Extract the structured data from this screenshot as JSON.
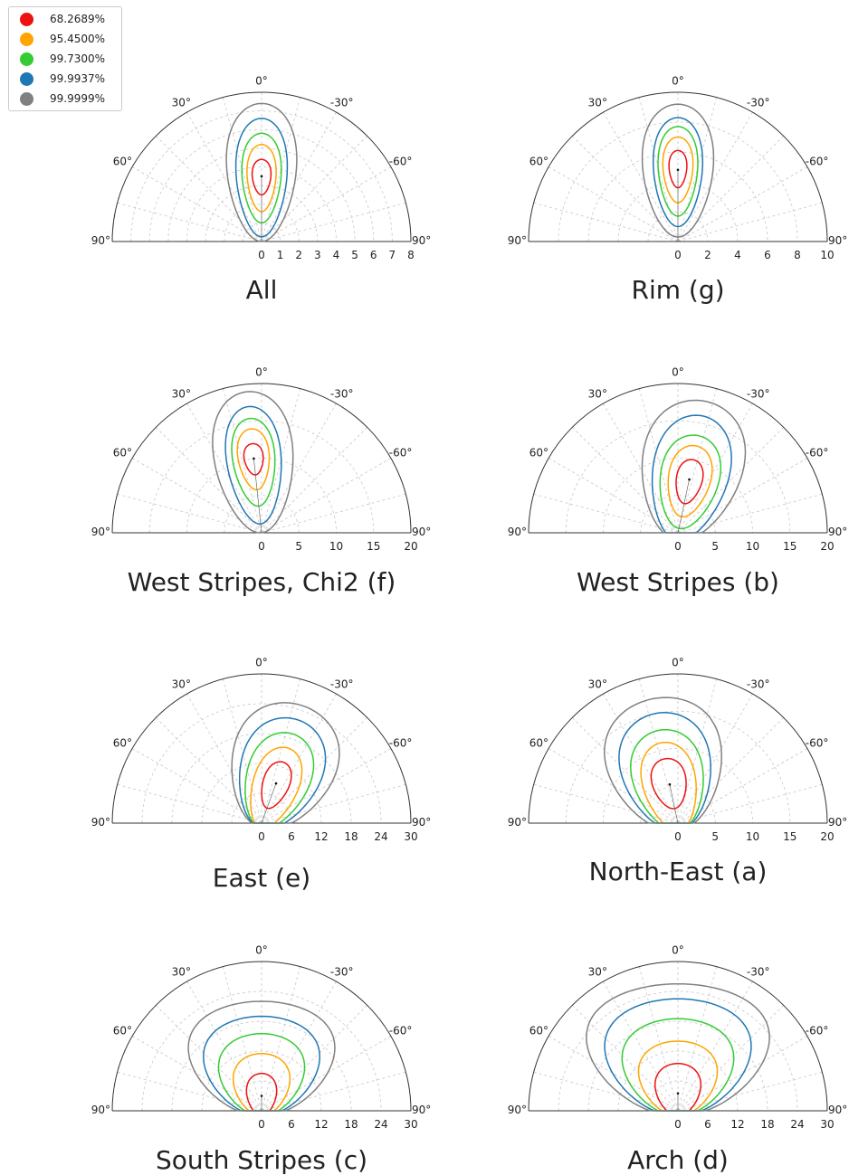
{
  "legend": {
    "items": [
      {
        "label": "68.2689%",
        "color": "#ee1111"
      },
      {
        "label": "95.4500%",
        "color": "#ffa500"
      },
      {
        "label": "99.7300%",
        "color": "#33cc33"
      },
      {
        "label": "99.9937%",
        "color": "#1f77b4"
      },
      {
        "label": "99.9999%",
        "color": "#808080"
      }
    ]
  },
  "chart_data": [
    {
      "type": "polar-contour",
      "title": "All",
      "theta_ticks": [
        "90°",
        "60°",
        "30°",
        "0°",
        "-30°",
        "-60°",
        "90°"
      ],
      "r_ticks": [
        "0",
        "1",
        "2",
        "3",
        "4",
        "5",
        "6",
        "7",
        "8"
      ],
      "rmax": 8,
      "center": {
        "theta_deg": 0,
        "r": 3.5
      },
      "contours": [
        {
          "level": "68.2689%",
          "color": "#ee1111",
          "r_top": 4.4,
          "r_bottom": 2.5,
          "half_width": 0.55
        },
        {
          "level": "95.4500%",
          "color": "#ffa500",
          "r_top": 5.2,
          "r_bottom": 1.6,
          "half_width": 0.85
        },
        {
          "level": "99.7300%",
          "color": "#33cc33",
          "r_top": 5.8,
          "r_bottom": 1.0,
          "half_width": 1.15
        },
        {
          "level": "99.9937%",
          "color": "#1f77b4",
          "r_top": 6.6,
          "r_bottom": 0.25,
          "half_width": 1.5
        },
        {
          "level": "99.9999%",
          "color": "#808080",
          "r_top": 7.4,
          "r_bottom": 0.0,
          "half_width": 2.05
        }
      ]
    },
    {
      "type": "polar-contour",
      "title": "Rim (g)",
      "theta_ticks": [
        "90°",
        "60°",
        "30°",
        "0°",
        "-30°",
        "-60°",
        "90°"
      ],
      "r_ticks": [
        "0",
        "2",
        "4",
        "6",
        "8",
        "10"
      ],
      "rmax": 10,
      "center": {
        "theta_deg": 0,
        "r": 4.8
      },
      "contours": [
        {
          "level": "68.2689%",
          "color": "#ee1111",
          "r_top": 6.1,
          "r_bottom": 3.6,
          "half_width": 0.65
        },
        {
          "level": "95.4500%",
          "color": "#ffa500",
          "r_top": 7.0,
          "r_bottom": 2.6,
          "half_width": 1.1
        },
        {
          "level": "99.7300%",
          "color": "#33cc33",
          "r_top": 7.7,
          "r_bottom": 1.7,
          "half_width": 1.45
        },
        {
          "level": "99.9937%",
          "color": "#1f77b4",
          "r_top": 8.3,
          "r_bottom": 1.0,
          "half_width": 1.8
        },
        {
          "level": "99.9999%",
          "color": "#808080",
          "r_top": 9.2,
          "r_bottom": 0.3,
          "half_width": 2.6
        }
      ]
    },
    {
      "type": "polar-contour",
      "title": "West Stripes, Chi2 (f)",
      "theta_ticks": [
        "90°",
        "60°",
        "30°",
        "0°",
        "-30°",
        "-60°",
        "90°"
      ],
      "r_ticks": [
        "0",
        "5",
        "10",
        "15",
        "20"
      ],
      "rmax": 20,
      "center": {
        "theta_deg": 6,
        "r": 10
      },
      "contours": [
        {
          "level": "68.2689%",
          "color": "#ee1111",
          "r_top": 12.0,
          "r_bottom": 7.8,
          "half_width": 1.4
        },
        {
          "level": "95.4500%",
          "color": "#ffa500",
          "r_top": 14.0,
          "r_bottom": 5.8,
          "half_width": 2.3
        },
        {
          "level": "99.7300%",
          "color": "#33cc33",
          "r_top": 15.4,
          "r_bottom": 3.6,
          "half_width": 3.1
        },
        {
          "level": "99.9937%",
          "color": "#1f77b4",
          "r_top": 17.0,
          "r_bottom": 1.2,
          "half_width": 4.0
        },
        {
          "level": "99.9999%",
          "color": "#808080",
          "r_top": 19.0,
          "r_bottom": 0.0,
          "half_width": 5.8
        }
      ]
    },
    {
      "type": "polar-contour",
      "title": "West Stripes (b)",
      "theta_ticks": [
        "90°",
        "60°",
        "30°",
        "0°",
        "-30°",
        "-60°",
        "90°"
      ],
      "r_ticks": [
        "0",
        "5",
        "10",
        "15",
        "20"
      ],
      "rmax": 20,
      "center": {
        "theta_deg": -12,
        "r": 7.3
      },
      "contours": [
        {
          "level": "68.2689%",
          "color": "#ee1111",
          "r_top": 10.0,
          "r_bottom": 4.0,
          "half_width": 1.9
        },
        {
          "level": "95.4500%",
          "color": "#ffa500",
          "r_top": 11.9,
          "r_bottom": 2.2,
          "half_width": 3.1
        },
        {
          "level": "99.7300%",
          "color": "#33cc33",
          "r_top": 13.3,
          "r_bottom": 0.6,
          "half_width": 4.3
        },
        {
          "level": "99.9937%",
          "color": "#1f77b4",
          "r_top": 16.0,
          "r_bottom": -1.0,
          "half_width": 5.6
        },
        {
          "level": "99.9999%",
          "color": "#808080",
          "r_top": 18.0,
          "r_bottom": -1.0,
          "half_width": 7.4
        }
      ]
    },
    {
      "type": "polar-contour",
      "title": "East (e)",
      "theta_ticks": [
        "90°",
        "60°",
        "30°",
        "0°",
        "-30°",
        "-60°",
        "90°"
      ],
      "r_ticks": [
        "0",
        "6",
        "12",
        "18",
        "24",
        "30"
      ],
      "rmax": 30,
      "center": {
        "theta_deg": -20,
        "r": 8.5
      },
      "contours": [
        {
          "level": "68.2689%",
          "color": "#ee1111",
          "r_top": 13.0,
          "r_bottom": 3.2,
          "half_width": 2.9
        },
        {
          "level": "95.4500%",
          "color": "#ffa500",
          "r_top": 16.0,
          "r_bottom": -1.0,
          "half_width": 5.0
        },
        {
          "level": "99.7300%",
          "color": "#33cc33",
          "r_top": 19.0,
          "r_bottom": -1.0,
          "half_width": 7.0
        },
        {
          "level": "99.9937%",
          "color": "#1f77b4",
          "r_top": 22.0,
          "r_bottom": -1.0,
          "half_width": 9.0
        },
        {
          "level": "99.9999%",
          "color": "#808080",
          "r_top": 25.0,
          "r_bottom": -1.0,
          "half_width": 11.5
        }
      ]
    },
    {
      "type": "polar-contour",
      "title": "North-East (a)",
      "theta_ticks": [
        "90°",
        "60°",
        "30°",
        "0°",
        "-30°",
        "-60°",
        "90°"
      ],
      "r_ticks": [
        "0",
        "5",
        "10",
        "15",
        "20"
      ],
      "rmax": 20,
      "center": {
        "theta_deg": 12,
        "r": 5.3
      },
      "contours": [
        {
          "level": "68.2689%",
          "color": "#ee1111",
          "r_top": 8.8,
          "r_bottom": 2.0,
          "half_width": 2.5
        },
        {
          "level": "95.4500%",
          "color": "#ffa500",
          "r_top": 11.0,
          "r_bottom": -1.0,
          "half_width": 3.9
        },
        {
          "level": "99.7300%",
          "color": "#33cc33",
          "r_top": 12.7,
          "r_bottom": -1.0,
          "half_width": 5.2
        },
        {
          "level": "99.9937%",
          "color": "#1f77b4",
          "r_top": 15.0,
          "r_bottom": -1.0,
          "half_width": 6.6
        },
        {
          "level": "99.9999%",
          "color": "#808080",
          "r_top": 17.0,
          "r_bottom": -1.0,
          "half_width": 8.5
        }
      ]
    },
    {
      "type": "polar-contour",
      "title": "South Stripes (c)",
      "theta_ticks": [
        "90°",
        "60°",
        "30°",
        "0°",
        "-30°",
        "-60°",
        "90°"
      ],
      "r_ticks": [
        "0",
        "6",
        "12",
        "18",
        "24",
        "30"
      ],
      "rmax": 30,
      "center": {
        "theta_deg": 0,
        "r": 3.0
      },
      "contours": [
        {
          "level": "68.2689%",
          "color": "#ee1111",
          "r_top": 7.5,
          "r_bottom": -1.0,
          "half_width": 3.3
        },
        {
          "level": "95.4500%",
          "color": "#ffa500",
          "r_top": 11.5,
          "r_bottom": -1.0,
          "half_width": 6.2
        },
        {
          "level": "99.7300%",
          "color": "#33cc33",
          "r_top": 15.5,
          "r_bottom": -1.0,
          "half_width": 9.4
        },
        {
          "level": "99.9937%",
          "color": "#1f77b4",
          "r_top": 19.0,
          "r_bottom": -1.0,
          "half_width": 12.7
        },
        {
          "level": "99.9999%",
          "color": "#808080",
          "r_top": 22.0,
          "r_bottom": -1.0,
          "half_width": 16.0
        }
      ]
    },
    {
      "type": "polar-contour",
      "title": "Arch (d)",
      "theta_ticks": [
        "90°",
        "60°",
        "30°",
        "0°",
        "-30°",
        "-60°",
        "90°"
      ],
      "r_ticks": [
        "0",
        "6",
        "12",
        "18",
        "24",
        "30"
      ],
      "rmax": 30,
      "center": {
        "theta_deg": 0,
        "r": 3.5
      },
      "contours": [
        {
          "level": "68.2689%",
          "color": "#ee1111",
          "r_top": 9.5,
          "r_bottom": -1.0,
          "half_width": 5.0
        },
        {
          "level": "95.4500%",
          "color": "#ffa500",
          "r_top": 14.0,
          "r_bottom": -1.0,
          "half_width": 8.6
        },
        {
          "level": "99.7300%",
          "color": "#33cc33",
          "r_top": 18.5,
          "r_bottom": -1.0,
          "half_width": 12.2
        },
        {
          "level": "99.9937%",
          "color": "#1f77b4",
          "r_top": 22.5,
          "r_bottom": -1.0,
          "half_width": 16.0
        },
        {
          "level": "99.9999%",
          "color": "#808080",
          "r_top": 25.5,
          "r_bottom": -1.0,
          "half_width": 20.0
        }
      ]
    }
  ]
}
